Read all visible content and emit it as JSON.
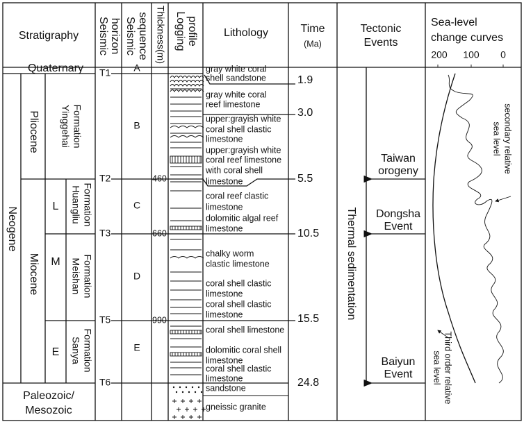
{
  "header": {
    "stratigraphy": "Stratigraphy",
    "seismic_horizon": [
      "Seismic",
      "horizon"
    ],
    "seismic_sequence": [
      "Seismic",
      "sequence"
    ],
    "thickness": "Thickness(m)",
    "logging_profile": [
      "Logging",
      "profile"
    ],
    "lithology": "Lithology",
    "time": [
      "Time",
      "(Ma)"
    ],
    "tectonic_events": [
      "Tectonic",
      "Events"
    ],
    "sea_level": [
      "Sea-level",
      "change curves"
    ],
    "sea_level_ticks": [
      "200",
      "100",
      "0"
    ]
  },
  "stratigraphy": {
    "quaternary": "Quaternary",
    "neogene": "Neogene",
    "pliocene": "Pliocene",
    "miocene": "Miocene",
    "yinggehai": [
      "Yinggehai",
      "Formation"
    ],
    "late": "L",
    "middle": "M",
    "early": "E",
    "huangliu": [
      "Huangliu",
      "Formation"
    ],
    "meishan": [
      "Meishan",
      "Formation"
    ],
    "sanya": [
      "Sanya",
      "Formation"
    ],
    "pre_cenozoic": [
      "Paleozoic/",
      "Mesozoic"
    ]
  },
  "horizons": [
    "T1",
    "T2",
    "T3",
    "T5",
    "T6"
  ],
  "sequences": [
    "A",
    "B",
    "C",
    "D",
    "E"
  ],
  "thicknesses": [
    "460",
    "660",
    "990"
  ],
  "lithology": [
    [
      "gray white coral",
      "shell sandstone"
    ],
    [
      "gray white coral",
      "reef limestone"
    ],
    [
      "upper:grayish white",
      "coral shell clastic",
      "limestone"
    ],
    [
      "upper:grayish white",
      "coral reef limestone",
      "with coral shell",
      "limestone"
    ],
    [
      "coral reef clastic",
      "limestone"
    ],
    [
      "dolomitic algal reef",
      "limestone"
    ],
    [
      "chalky worm",
      "clastic limestone"
    ],
    [
      "coral shell clastic",
      "limestone"
    ],
    [
      "coral shell clastic",
      "limestone"
    ],
    [
      "coral shell limestone"
    ],
    [
      "dolomitic coral shell",
      "limestone"
    ],
    [
      "coral shell clastic",
      "limestone"
    ],
    [
      "sandstone"
    ],
    [
      "gneissic granite"
    ]
  ],
  "times": [
    "1.9",
    "3.0",
    "5.5",
    "10.5",
    "15.5",
    "24.8"
  ],
  "tectonics": {
    "thermal": "Thermal sedimentation",
    "events": [
      [
        "Taiwan",
        "orogeny"
      ],
      [
        "Dongsha",
        "Event"
      ],
      [
        "Baiyun",
        "Event"
      ]
    ]
  },
  "curves": {
    "secondary": [
      "secondary relative",
      "sea level"
    ],
    "third_order": [
      "Third order relative",
      "sea level"
    ]
  }
}
